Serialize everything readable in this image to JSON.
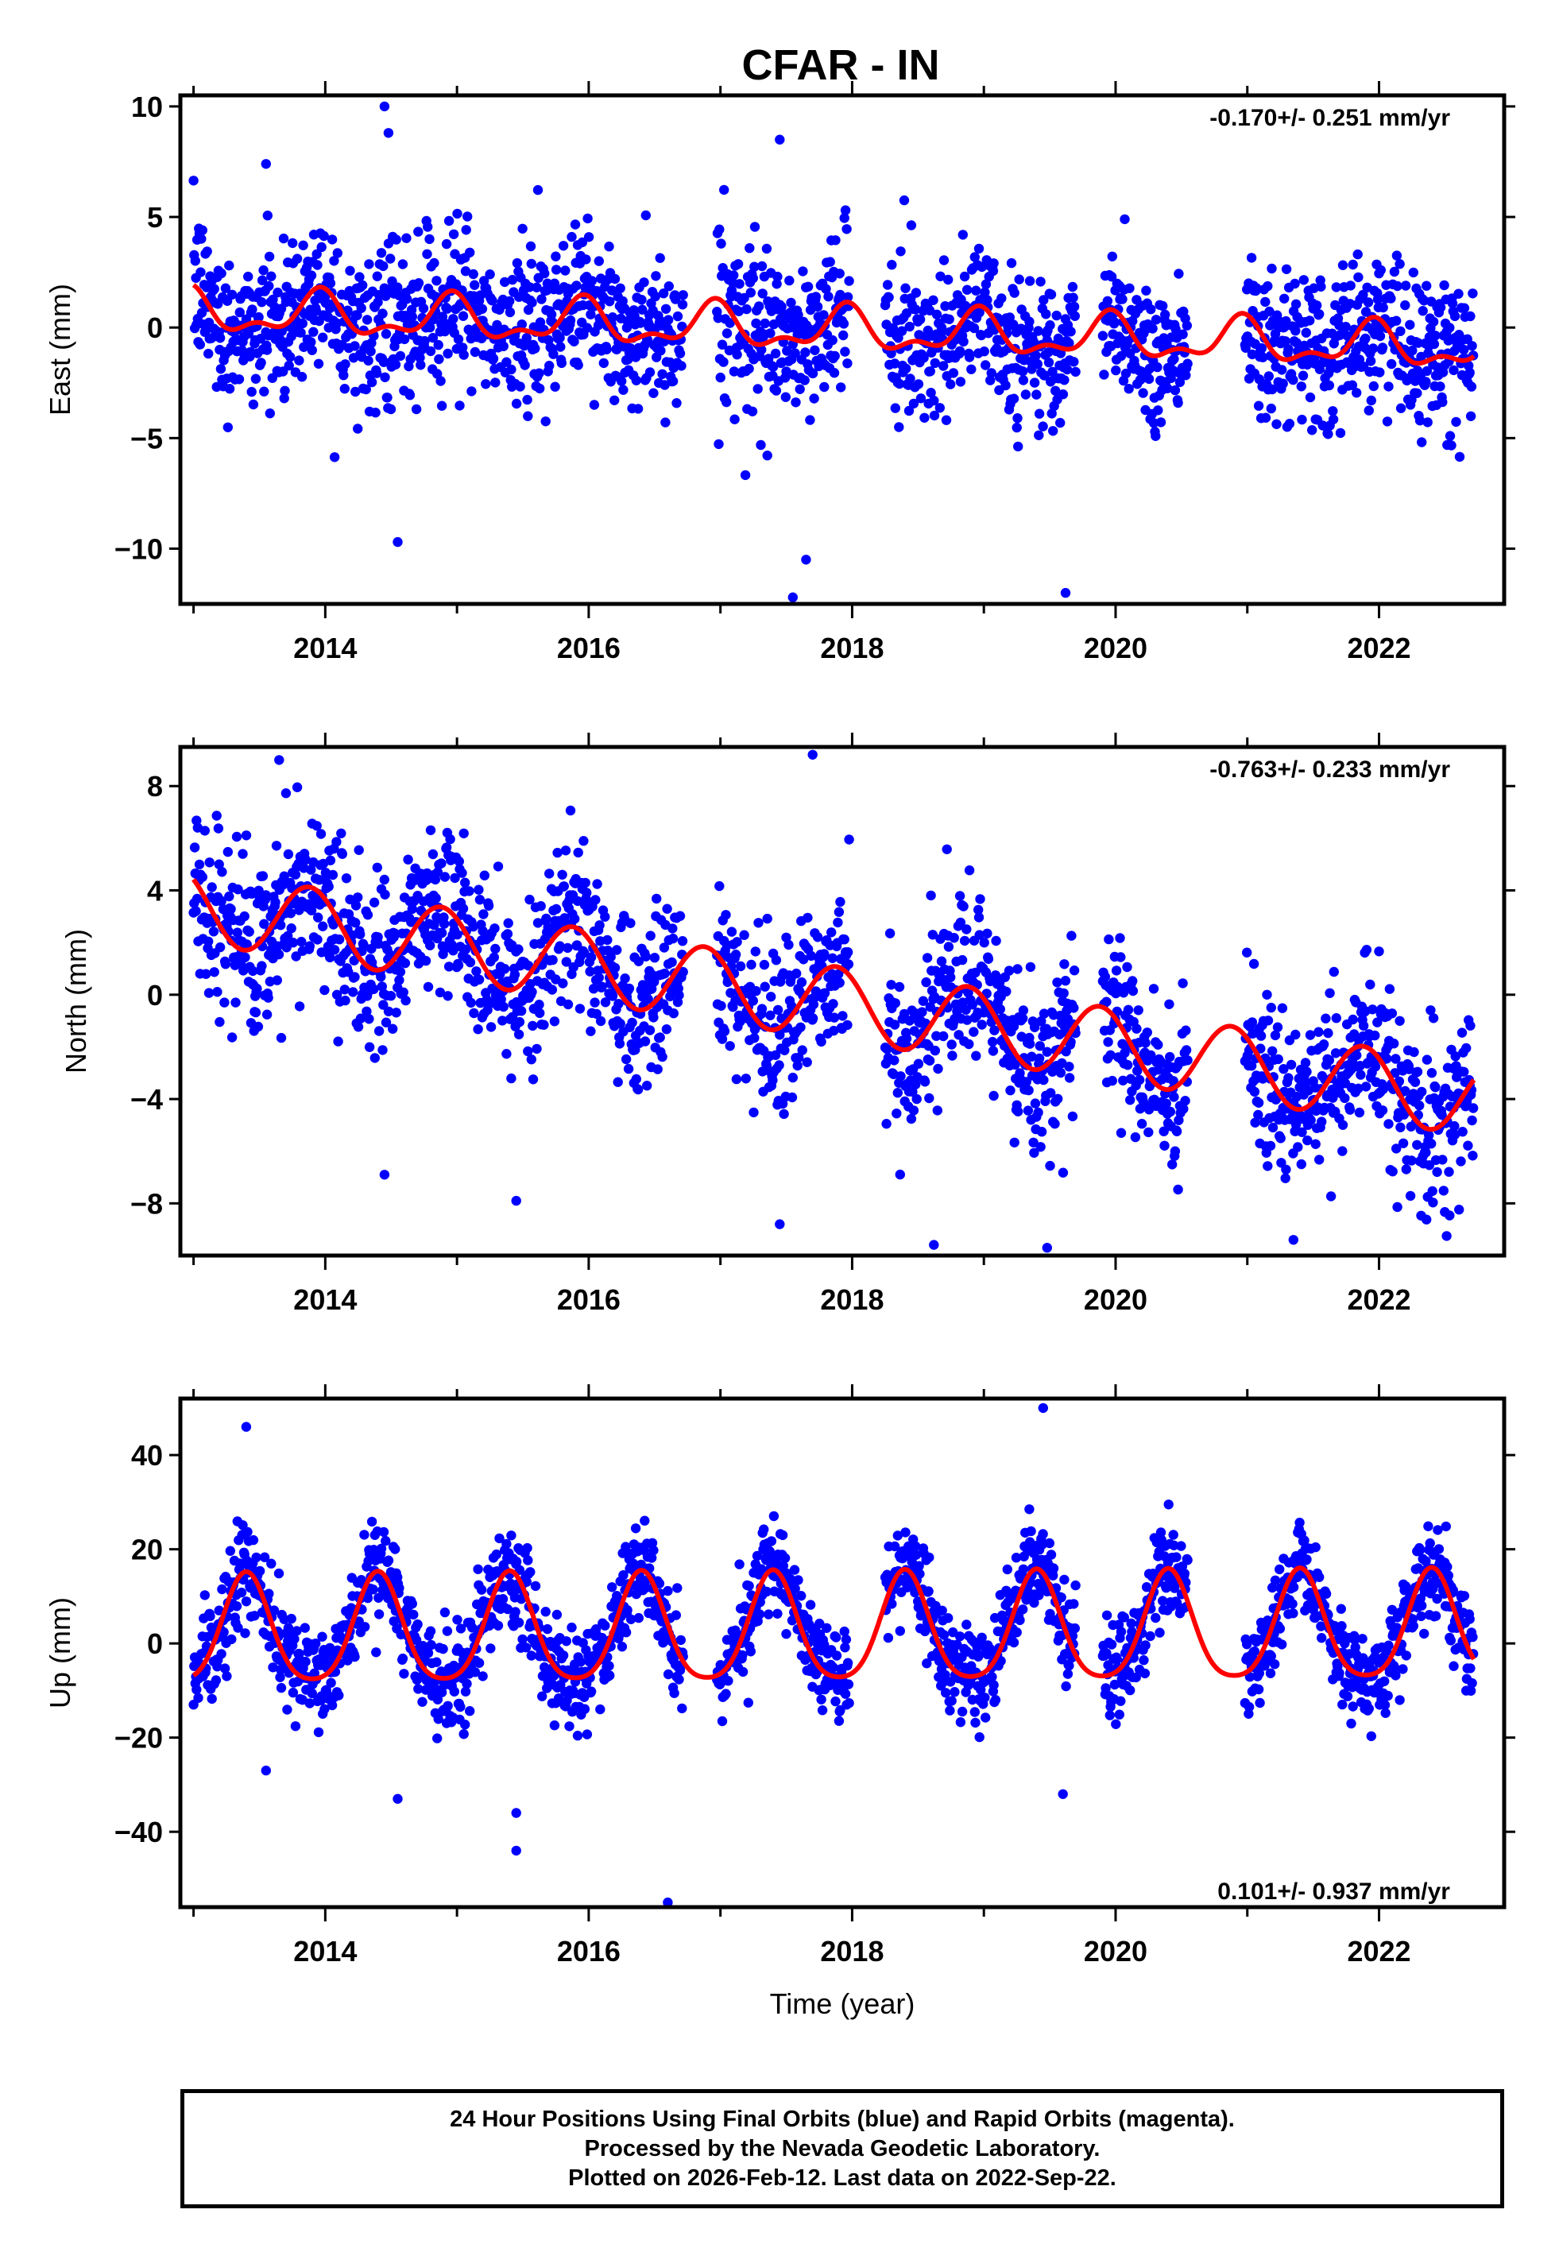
{
  "figure_title": "CFAR - IN",
  "chart_data": [
    {
      "type": "scatter",
      "component": "East",
      "ylabel": "East (mm)",
      "xlabel": "",
      "xlim": [
        2012.9,
        2022.95
      ],
      "ylim": [
        -12.5,
        10.5
      ],
      "yticks": [
        10,
        5,
        0,
        -5,
        -10
      ],
      "xticks": [
        2014,
        2016,
        2018,
        2020,
        2022
      ],
      "rate_text": "-0.170+/- 0.251 mm/yr",
      "rate_position": "top-right",
      "series": [
        {
          "name": "Final Orbits (blue)",
          "color": "#0000ff",
          "kind": "points"
        },
        {
          "name": "Model fit",
          "color": "#ff0000",
          "kind": "line",
          "model": {
            "t0": 2013.0,
            "offset": 0.7,
            "rate": -0.17,
            "annual_amp": 0.85,
            "annual_peak": 2013.95,
            "semiannual_amp": 0.45,
            "semiannual_peak": 2013.97
          }
        }
      ],
      "data_gaps": [
        [
          2016.72,
          2016.97
        ],
        [
          2017.98,
          2018.25
        ],
        [
          2019.7,
          2019.9
        ],
        [
          2020.55,
          2020.98
        ]
      ],
      "point_scatter_mm": 1.7,
      "outlier_points": [
        [
          2014.45,
          10.0
        ],
        [
          2014.48,
          8.8
        ],
        [
          2017.45,
          8.5
        ],
        [
          2017.55,
          -12.2
        ],
        [
          2019.62,
          -12.0
        ],
        [
          2014.55,
          -9.7
        ],
        [
          2017.65,
          -10.5
        ],
        [
          2013.55,
          7.4
        ]
      ]
    },
    {
      "type": "scatter",
      "component": "North",
      "ylabel": "North (mm)",
      "xlabel": "",
      "xlim": [
        2012.9,
        2022.95
      ],
      "ylim": [
        -10.0,
        9.5
      ],
      "yticks": [
        8,
        4,
        0,
        -4,
        -8
      ],
      "xticks": [
        2014,
        2016,
        2018,
        2020,
        2022
      ],
      "rate_text": "-0.763+/- 0.233 mm/yr",
      "rate_position": "top-right",
      "series": [
        {
          "name": "Final Orbits (blue)",
          "color": "#0000ff",
          "kind": "points"
        },
        {
          "name": "Model fit",
          "color": "#ff0000",
          "kind": "line",
          "model": {
            "t0": 2013.0,
            "offset": 3.4,
            "rate": -0.763,
            "annual_amp": 1.4,
            "annual_peak": 2013.88,
            "semiannual_amp": 0.0,
            "semiannual_peak": 2013.5
          }
        }
      ],
      "data_gaps": [
        [
          2016.72,
          2016.97
        ],
        [
          2017.98,
          2018.25
        ],
        [
          2019.7,
          2019.9
        ],
        [
          2020.55,
          2020.98
        ]
      ],
      "point_scatter_mm": 1.6,
      "outlier_points": [
        [
          2013.65,
          9.0
        ],
        [
          2017.7,
          9.2
        ],
        [
          2017.45,
          -8.8
        ],
        [
          2019.48,
          -9.7
        ],
        [
          2021.35,
          -9.4
        ],
        [
          2014.45,
          -6.9
        ],
        [
          2015.45,
          -7.9
        ]
      ]
    },
    {
      "type": "scatter",
      "component": "Up",
      "ylabel": "Up (mm)",
      "xlabel": "Time (year)",
      "xlim": [
        2012.9,
        2022.95
      ],
      "ylim": [
        -56.0,
        52.0
      ],
      "yticks": [
        40,
        20,
        0,
        -20,
        -40
      ],
      "xticks": [
        2014,
        2016,
        2018,
        2020,
        2022
      ],
      "rate_text": "0.101+/- 0.937 mm/yr",
      "rate_position": "bottom-right",
      "series": [
        {
          "name": "Final Orbits (blue)",
          "color": "#0000ff",
          "kind": "points"
        },
        {
          "name": "Model fit",
          "color": "#ff0000",
          "kind": "line",
          "model": {
            "t0": 2013.0,
            "offset": 1.8,
            "rate": 0.101,
            "annual_amp": 11.4,
            "annual_peak": 2013.4,
            "semiannual_amp": 2.0,
            "semiannual_peak": 2013.4
          }
        }
      ],
      "data_gaps": [
        [
          2016.72,
          2016.97
        ],
        [
          2017.98,
          2018.25
        ],
        [
          2019.7,
          2019.9
        ],
        [
          2020.55,
          2020.98
        ]
      ],
      "point_scatter_mm": 5.0,
      "outlier_points": [
        [
          2013.4,
          46.0
        ],
        [
          2019.45,
          50.0
        ],
        [
          2016.6,
          -55.0
        ],
        [
          2015.45,
          -44.0
        ],
        [
          2015.45,
          -36.0
        ],
        [
          2014.55,
          -33.0
        ],
        [
          2019.6,
          -32.0
        ],
        [
          2013.55,
          -27.0
        ]
      ]
    }
  ],
  "footer": {
    "line1": "24 Hour Positions Using Final Orbits (blue) and Rapid Orbits (magenta).",
    "line2": "Processed by the Nevada Geodetic Laboratory.",
    "line3": "Plotted on 2026-Feb-12. Last data on 2022-Sep-22."
  },
  "colors": {
    "points": "#0000ff",
    "model": "#ff0000",
    "frame": "#000000"
  }
}
